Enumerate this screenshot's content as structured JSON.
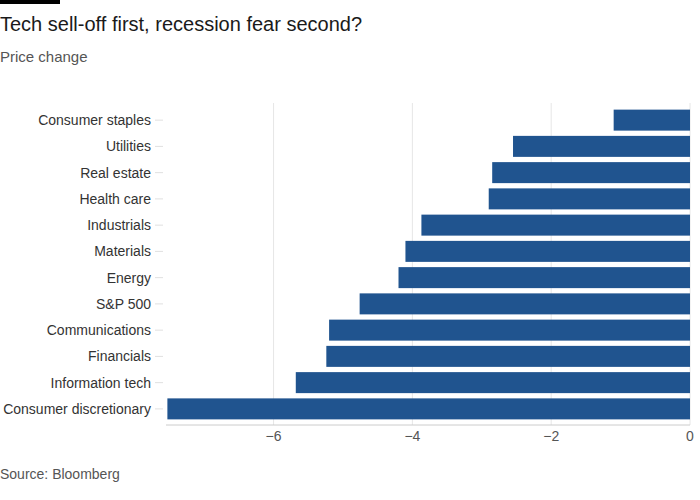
{
  "chart_data": {
    "type": "bar",
    "orientation": "horizontal",
    "title": "Tech sell-off first, recession fear second?",
    "subtitle": "Price change",
    "source": "Source: Bloomberg",
    "categories": [
      "Consumer staples",
      "Utilities",
      "Real estate",
      "Health care",
      "Industrials",
      "Materials",
      "Energy",
      "S&P 500",
      "Communications",
      "Financials",
      "Information tech",
      "Consumer discretionary"
    ],
    "values": [
      -1.1,
      -2.55,
      -2.85,
      -2.9,
      -3.87,
      -4.1,
      -4.2,
      -4.76,
      -5.2,
      -5.24,
      -5.68,
      -7.53
    ],
    "color": "#20548f",
    "xlim": [
      -7.55,
      0
    ],
    "xticks": [
      -6,
      -4,
      -2,
      0
    ],
    "grid": true
  }
}
